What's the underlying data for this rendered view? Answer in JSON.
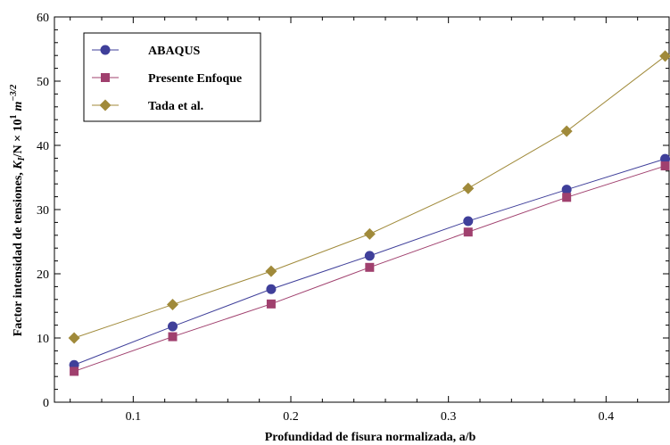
{
  "chart_data": {
    "type": "line",
    "xlabel": "Profundidad de fisura normalizada, a/b",
    "ylabel": {
      "prefix": "Factor intensidad de tensiones, ",
      "k": "K",
      "k_sub": "I",
      "mid": "/N × 10",
      "exp": "1",
      "unit": "m",
      "unit_exp": "−3/2"
    },
    "xlim": [
      0.05,
      0.44
    ],
    "ylim": [
      0,
      60
    ],
    "xticks": [
      0.1,
      0.2,
      0.3,
      0.4
    ],
    "xtick_labels": [
      "0.1",
      "0.2",
      "0.3",
      "0.4"
    ],
    "yticks": [
      0,
      10,
      20,
      30,
      40,
      50,
      60
    ],
    "ytick_labels": [
      "0",
      "10",
      "20",
      "30",
      "40",
      "50",
      "60"
    ],
    "x": [
      0.0625,
      0.125,
      0.1875,
      0.25,
      0.3125,
      0.375,
      0.4375
    ],
    "series": [
      {
        "name": "ABAQUS",
        "marker": "circle",
        "color": "#3f3f9a",
        "values": [
          5.8,
          11.8,
          17.6,
          22.8,
          28.2,
          33.1,
          37.9
        ]
      },
      {
        "name": "Presente Enfoque",
        "marker": "square",
        "color": "#a0406e",
        "values": [
          4.8,
          10.2,
          15.3,
          21.0,
          26.5,
          31.9,
          36.8
        ]
      },
      {
        "name": "Tada et al.",
        "marker": "diamond",
        "color": "#a08a3a",
        "values": [
          10.0,
          15.2,
          20.4,
          26.2,
          33.3,
          42.2,
          53.9
        ]
      }
    ],
    "legend_position": "top-left",
    "grid": false
  }
}
